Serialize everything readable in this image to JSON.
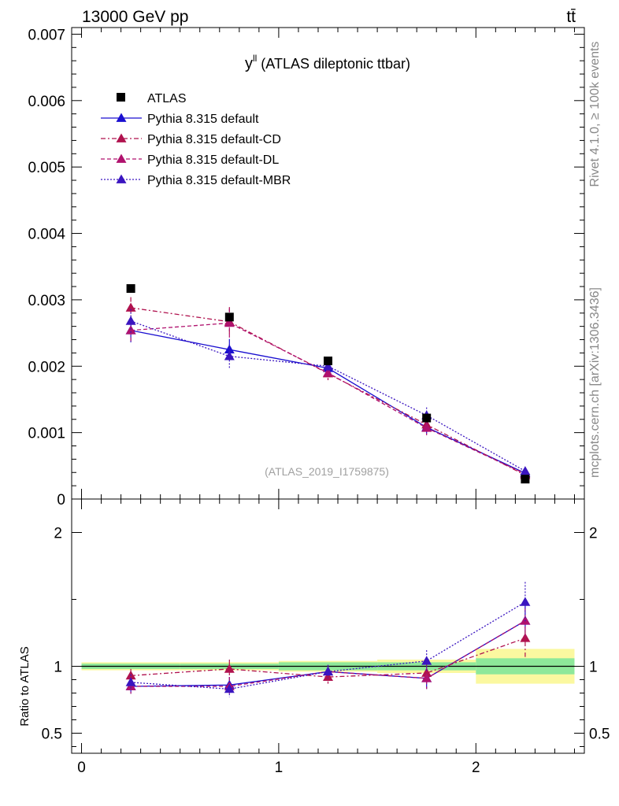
{
  "header": {
    "energy": "13000 GeV pp",
    "process": "tt̄"
  },
  "side": {
    "rivet": "Rivet 4.1.0, ≥ 100k events",
    "mcplots": "mcplots.cern.ch [arXiv:1306.3436]"
  },
  "chart_data": {
    "type": "scatter",
    "title": "y",
    "title_sup": "ll",
    "title_rest": " (ATLAS dileptonic ttbar)",
    "analysis_id": "(ATLAS_2019_I1759875)",
    "xlabel": "",
    "ylabel": "",
    "ratio_ylabel": "Ratio to ATLAS",
    "xlim": [
      -0.05,
      2.55
    ],
    "ylim": [
      0,
      0.0071
    ],
    "ratio_ylim": [
      0.35,
      2.25
    ],
    "x_ticks": [
      0,
      1,
      2
    ],
    "x_tick_labels": [
      "0",
      "1",
      "2"
    ],
    "y_ticks": [
      0,
      0.001,
      0.002,
      0.003,
      0.004,
      0.005,
      0.006,
      0.007
    ],
    "y_tick_labels": [
      "0",
      "0.001",
      "0.002",
      "0.003",
      "0.004",
      "0.005",
      "0.006",
      "0.007"
    ],
    "ratio_ticks": [
      0.5,
      1,
      2
    ],
    "ratio_tick_labels": [
      "0.5",
      "1",
      "2"
    ],
    "bins": [
      [
        0,
        0.5
      ],
      [
        0.5,
        1.0
      ],
      [
        1.0,
        1.5
      ],
      [
        1.5,
        2.0
      ],
      [
        2.0,
        2.5
      ]
    ],
    "x": [
      0.25,
      0.75,
      1.25,
      1.75,
      2.25
    ],
    "data": {
      "name": "ATLAS",
      "values": [
        0.00317,
        0.00274,
        0.00208,
        0.00122,
        0.0003
      ],
      "band_stat": [
        0.02,
        0.02,
        0.03,
        0.03,
        0.06
      ],
      "band_total": [
        0.03,
        0.03,
        0.04,
        0.05,
        0.13
      ]
    },
    "series": [
      {
        "name": "Pythia 8.315 default",
        "color": "#1a0fd0",
        "dash": "",
        "values": [
          0.00254,
          0.00225,
          0.00197,
          0.00108,
          0.00039
        ],
        "errors": [
          0.00018,
          0.00016,
          9e-05,
          0.0001,
          4e-05
        ],
        "ratio": [
          0.85,
          0.86,
          0.96,
          0.91,
          1.34
        ],
        "ratio_err": [
          0.055,
          0.06,
          0.05,
          0.08,
          0.14
        ]
      },
      {
        "name": "Pythia 8.315 default-CD",
        "color": "#b0124e",
        "dash": "6,3,2,3",
        "values": [
          0.00288,
          0.00267,
          0.00189,
          0.00112,
          0.00036
        ],
        "errors": [
          0.00016,
          0.00022,
          0.0001,
          0.00011,
          4e-05
        ],
        "ratio": [
          0.93,
          0.98,
          0.92,
          0.95,
          1.21
        ],
        "ratio_err": [
          0.05,
          0.07,
          0.05,
          0.08,
          0.14
        ]
      },
      {
        "name": "Pythia 8.315 default-DL",
        "color": "#b0126e",
        "dash": "5,3",
        "values": [
          0.00254,
          0.00265,
          0.0019,
          0.00107,
          0.00038
        ],
        "errors": [
          0.00018,
          0.00022,
          0.0001,
          0.00011,
          4e-05
        ],
        "ratio": [
          0.85,
          0.85,
          0.96,
          0.91,
          1.34
        ],
        "ratio_err": [
          0.055,
          0.07,
          0.05,
          0.08,
          0.14
        ]
      },
      {
        "name": "Pythia 8.315 default-MBR",
        "color": "#3a15c0",
        "dash": "2,2",
        "values": [
          0.00268,
          0.00215,
          0.002,
          0.00126,
          0.00042
        ],
        "errors": [
          0.00018,
          0.00018,
          9e-05,
          0.00012,
          5e-05
        ],
        "ratio": [
          0.88,
          0.83,
          0.96,
          1.04,
          1.48
        ],
        "ratio_err": [
          0.06,
          0.06,
          0.05,
          0.08,
          0.15
        ]
      }
    ]
  }
}
